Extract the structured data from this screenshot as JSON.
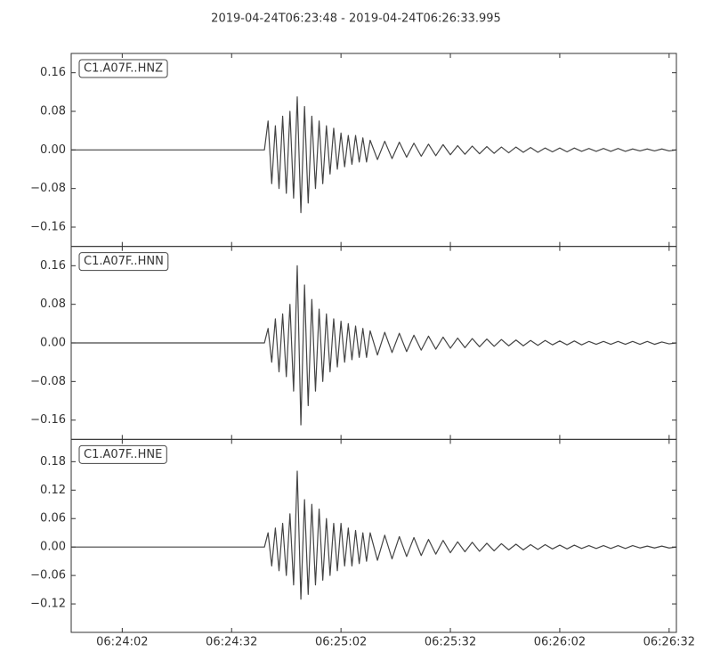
{
  "title": "2019-04-24T06:23:48  -  2019-04-24T06:26:33.995",
  "chart_data": [
    {
      "type": "line",
      "xlim": [
        "06:23:48",
        "06:26:33.995"
      ],
      "ylim": [
        -0.2,
        0.2
      ],
      "yticks": [
        {
          "value": -0.16,
          "label": "−0.16"
        },
        {
          "value": -0.08,
          "label": "−0.08"
        },
        {
          "value": 0,
          "label": "0.00"
        },
        {
          "value": 0.08,
          "label": "0.08"
        },
        {
          "value": 0.16,
          "label": "0.16"
        }
      ],
      "x": [
        "06:23:48",
        "06:24:41",
        "06:24:42",
        "06:24:43",
        "06:24:44",
        "06:24:45",
        "06:24:46",
        "06:24:47",
        "06:24:48",
        "06:24:49",
        "06:24:50",
        "06:24:51",
        "06:24:52",
        "06:24:53",
        "06:24:54",
        "06:24:55",
        "06:24:56",
        "06:24:57",
        "06:24:58",
        "06:24:59",
        "06:25:00",
        "06:25:01",
        "06:25:02",
        "06:25:03",
        "06:25:04",
        "06:25:05",
        "06:25:06",
        "06:25:07",
        "06:25:08",
        "06:25:09",
        "06:25:10",
        "06:25:12",
        "06:25:14",
        "06:25:16",
        "06:25:18",
        "06:25:20",
        "06:25:22",
        "06:25:24",
        "06:25:26",
        "06:25:28",
        "06:25:30",
        "06:25:32",
        "06:25:34",
        "06:25:36",
        "06:25:38",
        "06:25:40",
        "06:25:42",
        "06:25:44",
        "06:25:46",
        "06:25:48",
        "06:25:50",
        "06:25:52",
        "06:25:54",
        "06:25:56",
        "06:25:58",
        "06:26:00",
        "06:26:02",
        "06:26:04",
        "06:26:06",
        "06:26:08",
        "06:26:10",
        "06:26:12",
        "06:26:14",
        "06:26:16",
        "06:26:18",
        "06:26:20",
        "06:26:22",
        "06:26:24",
        "06:26:26",
        "06:26:28",
        "06:26:30",
        "06:26:32",
        "06:26:33.995"
      ],
      "series": [
        {
          "name": "C1.A07F..HNZ",
          "color": "#444444",
          "values": [
            0,
            0,
            0.06,
            -0.07,
            0.05,
            -0.08,
            0.07,
            -0.09,
            0.08,
            -0.1,
            0.11,
            -0.13,
            0.09,
            -0.11,
            0.07,
            -0.08,
            0.06,
            -0.07,
            0.05,
            -0.05,
            0.045,
            -0.04,
            0.035,
            -0.035,
            0.03,
            -0.03,
            0.03,
            -0.025,
            0.025,
            -0.025,
            0.02,
            -0.02,
            0.018,
            -0.018,
            0.016,
            -0.015,
            0.014,
            -0.013,
            0.012,
            -0.012,
            0.011,
            -0.01,
            0.009,
            -0.009,
            0.008,
            -0.008,
            0.007,
            -0.007,
            0.006,
            -0.006,
            0.006,
            -0.005,
            0.005,
            -0.005,
            0.004,
            -0.004,
            0.004,
            -0.004,
            0.004,
            -0.003,
            0.003,
            -0.003,
            0.003,
            -0.003,
            0.003,
            -0.003,
            0.002,
            -0.002,
            0.002,
            -0.002,
            0.002,
            -0.002,
            0
          ]
        }
      ]
    },
    {
      "type": "line",
      "xlim": [
        "06:23:48",
        "06:26:33.995"
      ],
      "ylim": [
        -0.2,
        0.2
      ],
      "yticks": [
        {
          "value": -0.16,
          "label": "−0.16"
        },
        {
          "value": -0.08,
          "label": "−0.08"
        },
        {
          "value": 0,
          "label": "0.00"
        },
        {
          "value": 0.08,
          "label": "0.08"
        },
        {
          "value": 0.16,
          "label": "0.16"
        }
      ],
      "x": [
        "06:23:48",
        "06:24:41",
        "06:24:42",
        "06:24:43",
        "06:24:44",
        "06:24:45",
        "06:24:46",
        "06:24:47",
        "06:24:48",
        "06:24:49",
        "06:24:50",
        "06:24:51",
        "06:24:52",
        "06:24:53",
        "06:24:54",
        "06:24:55",
        "06:24:56",
        "06:24:57",
        "06:24:58",
        "06:24:59",
        "06:25:00",
        "06:25:01",
        "06:25:02",
        "06:25:03",
        "06:25:04",
        "06:25:05",
        "06:25:06",
        "06:25:07",
        "06:25:08",
        "06:25:09",
        "06:25:10",
        "06:25:12",
        "06:25:14",
        "06:25:16",
        "06:25:18",
        "06:25:20",
        "06:25:22",
        "06:25:24",
        "06:25:26",
        "06:25:28",
        "06:25:30",
        "06:25:32",
        "06:25:34",
        "06:25:36",
        "06:25:38",
        "06:25:40",
        "06:25:42",
        "06:25:44",
        "06:25:46",
        "06:25:48",
        "06:25:50",
        "06:25:52",
        "06:25:54",
        "06:25:56",
        "06:25:58",
        "06:26:00",
        "06:26:02",
        "06:26:04",
        "06:26:06",
        "06:26:08",
        "06:26:10",
        "06:26:12",
        "06:26:14",
        "06:26:16",
        "06:26:18",
        "06:26:20",
        "06:26:22",
        "06:26:24",
        "06:26:26",
        "06:26:28",
        "06:26:30",
        "06:26:32",
        "06:26:33.995"
      ],
      "series": [
        {
          "name": "C1.A07F..HNN",
          "color": "#444444",
          "values": [
            0,
            0,
            0.03,
            -0.04,
            0.05,
            -0.06,
            0.06,
            -0.07,
            0.08,
            -0.1,
            0.16,
            -0.17,
            0.12,
            -0.13,
            0.09,
            -0.1,
            0.07,
            -0.08,
            0.06,
            -0.06,
            0.05,
            -0.05,
            0.045,
            -0.04,
            0.04,
            -0.035,
            0.035,
            -0.03,
            0.03,
            -0.03,
            0.025,
            -0.025,
            0.022,
            -0.02,
            0.02,
            -0.018,
            0.016,
            -0.015,
            0.014,
            -0.013,
            0.012,
            -0.011,
            0.01,
            -0.01,
            0.009,
            -0.008,
            0.008,
            -0.007,
            0.007,
            -0.006,
            0.006,
            -0.006,
            0.005,
            -0.005,
            0.005,
            -0.004,
            0.004,
            -0.004,
            0.004,
            -0.004,
            0.003,
            -0.003,
            0.003,
            -0.003,
            0.003,
            -0.003,
            0.003,
            -0.003,
            0.003,
            -0.003,
            0.002,
            -0.002,
            0
          ]
        }
      ]
    },
    {
      "type": "line",
      "xlim": [
        "06:23:48",
        "06:26:33.995"
      ],
      "ylim": [
        -0.18,
        0.227
      ],
      "yticks": [
        {
          "value": -0.12,
          "label": "−0.12"
        },
        {
          "value": -0.06,
          "label": "−0.06"
        },
        {
          "value": 0,
          "label": "0.00"
        },
        {
          "value": 0.06,
          "label": "0.06"
        },
        {
          "value": 0.12,
          "label": "0.12"
        },
        {
          "value": 0.18,
          "label": "0.18"
        }
      ],
      "xticks": [
        "06:24:02",
        "06:24:32",
        "06:25:02",
        "06:25:32",
        "06:26:02",
        "06:26:32"
      ],
      "x": [
        "06:23:48",
        "06:24:41",
        "06:24:42",
        "06:24:43",
        "06:24:44",
        "06:24:45",
        "06:24:46",
        "06:24:47",
        "06:24:48",
        "06:24:49",
        "06:24:50",
        "06:24:51",
        "06:24:52",
        "06:24:53",
        "06:24:54",
        "06:24:55",
        "06:24:56",
        "06:24:57",
        "06:24:58",
        "06:24:59",
        "06:25:00",
        "06:25:01",
        "06:25:02",
        "06:25:03",
        "06:25:04",
        "06:25:05",
        "06:25:06",
        "06:25:07",
        "06:25:08",
        "06:25:09",
        "06:25:10",
        "06:25:12",
        "06:25:14",
        "06:25:16",
        "06:25:18",
        "06:25:20",
        "06:25:22",
        "06:25:24",
        "06:25:26",
        "06:25:28",
        "06:25:30",
        "06:25:32",
        "06:25:34",
        "06:25:36",
        "06:25:38",
        "06:25:40",
        "06:25:42",
        "06:25:44",
        "06:25:46",
        "06:25:48",
        "06:25:50",
        "06:25:52",
        "06:25:54",
        "06:25:56",
        "06:25:58",
        "06:26:00",
        "06:26:02",
        "06:26:04",
        "06:26:06",
        "06:26:08",
        "06:26:10",
        "06:26:12",
        "06:26:14",
        "06:26:16",
        "06:26:18",
        "06:26:20",
        "06:26:22",
        "06:26:24",
        "06:26:26",
        "06:26:28",
        "06:26:30",
        "06:26:32",
        "06:26:33.995"
      ],
      "series": [
        {
          "name": "C1.A07F..HNE",
          "color": "#444444",
          "values": [
            0,
            0,
            0.03,
            -0.04,
            0.04,
            -0.05,
            0.05,
            -0.06,
            0.07,
            -0.08,
            0.16,
            -0.11,
            0.1,
            -0.1,
            0.09,
            -0.08,
            0.08,
            -0.07,
            0.06,
            -0.06,
            0.05,
            -0.05,
            0.05,
            -0.04,
            0.04,
            -0.04,
            0.035,
            -0.035,
            0.03,
            -0.03,
            0.03,
            -0.028,
            0.025,
            -0.025,
            0.022,
            -0.02,
            0.02,
            -0.018,
            0.016,
            -0.015,
            0.014,
            -0.012,
            0.011,
            -0.01,
            0.01,
            -0.009,
            0.008,
            -0.008,
            0.007,
            -0.006,
            0.006,
            -0.006,
            0.005,
            -0.005,
            0.005,
            -0.004,
            0.004,
            -0.004,
            0.004,
            -0.003,
            0.003,
            -0.003,
            0.003,
            -0.003,
            0.003,
            -0.003,
            0.003,
            -0.002,
            0.002,
            -0.002,
            0.002,
            -0.002,
            0
          ]
        }
      ]
    }
  ]
}
